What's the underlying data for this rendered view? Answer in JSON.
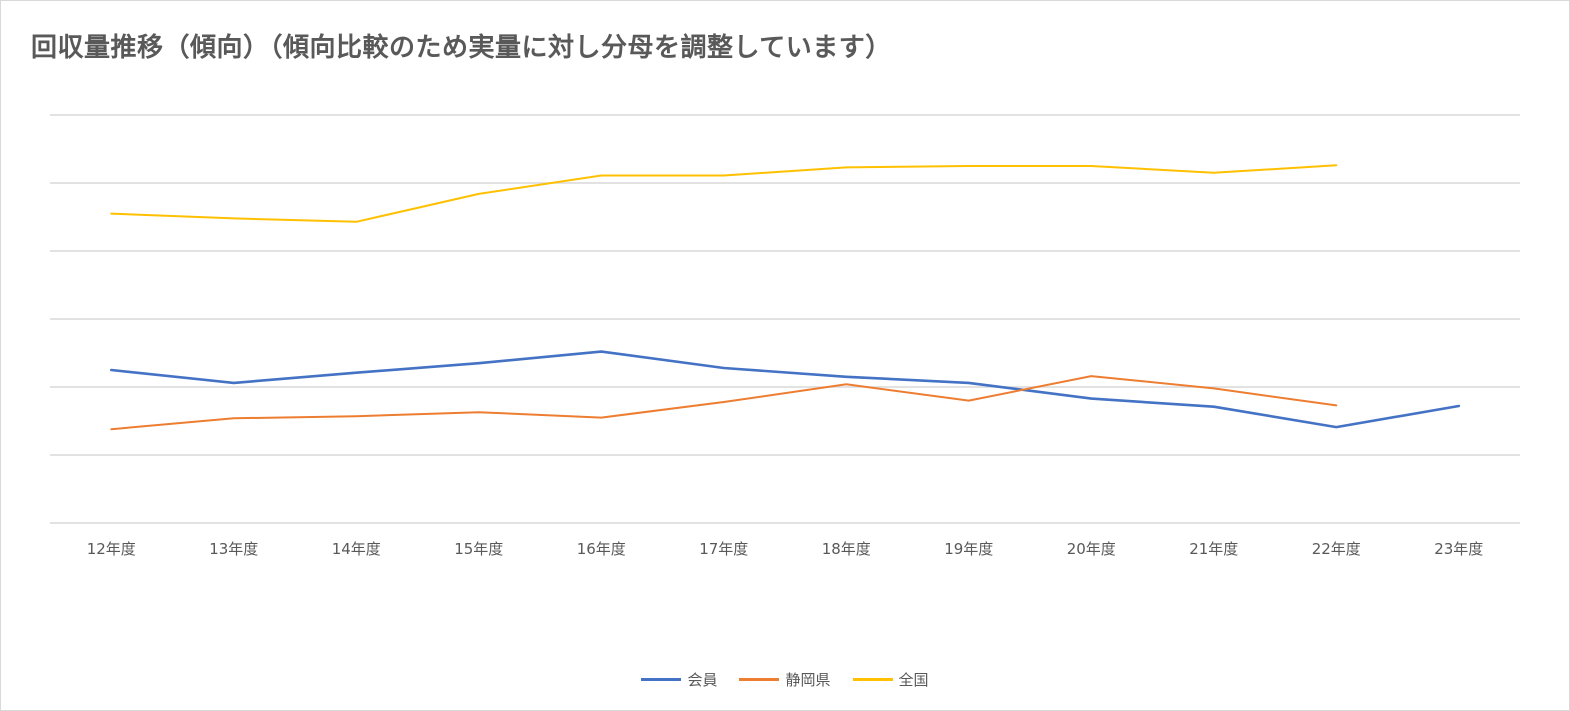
{
  "chart_data": {
    "type": "line",
    "title": "回収量推移（傾向）（傾向比較のため実量に対し分母を調整しています）",
    "categories": [
      "12年度",
      "13年度",
      "14年度",
      "15年度",
      "16年度",
      "17年度",
      "18年度",
      "19年度",
      "20年度",
      "21年度",
      "22年度",
      "23年度"
    ],
    "ylim": [
      0,
      6
    ],
    "y_ticks_visible": false,
    "gridlines": [
      0,
      1,
      2,
      3,
      4,
      5,
      6
    ],
    "grid": true,
    "legend_position": "bottom",
    "series": [
      {
        "name": "会員",
        "color": "#4472C4",
        "values": [
          2.25,
          2.06,
          2.21,
          2.35,
          2.52,
          2.28,
          2.15,
          2.06,
          1.83,
          1.71,
          1.41,
          1.72
        ]
      },
      {
        "name": "静岡県",
        "color": "#ED7D31",
        "values": [
          1.38,
          1.54,
          1.57,
          1.63,
          1.55,
          1.78,
          2.04,
          1.8,
          2.16,
          1.98,
          1.73,
          null
        ]
      },
      {
        "name": "全国",
        "color": "#FFC000",
        "values": [
          4.55,
          4.48,
          4.43,
          4.84,
          5.11,
          5.11,
          5.23,
          5.25,
          5.25,
          5.15,
          5.26,
          null
        ]
      }
    ]
  }
}
